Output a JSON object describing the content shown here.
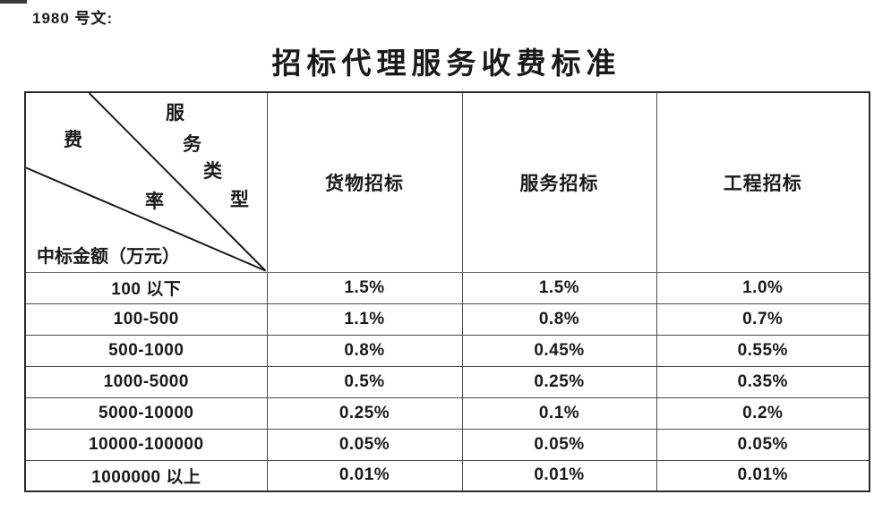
{
  "doc_label": "1980 号文:",
  "title": "招标代理服务收费标准",
  "table": {
    "corner": {
      "fee": "费",
      "rate": "率",
      "service_chars": [
        "服",
        "务",
        "类",
        "型"
      ],
      "amount_label": "中标金额（万元）"
    },
    "columns": [
      "货物招标",
      "服务招标",
      "工程招标"
    ],
    "rows": [
      {
        "label": "100 以下",
        "values": [
          "1.5%",
          "1.5%",
          "1.0%"
        ]
      },
      {
        "label": "100-500",
        "values": [
          "1.1%",
          "0.8%",
          "0.7%"
        ]
      },
      {
        "label": "500-1000",
        "values": [
          "0.8%",
          "0.45%",
          "0.55%"
        ]
      },
      {
        "label": "1000-5000",
        "values": [
          "0.5%",
          "0.25%",
          "0.35%"
        ]
      },
      {
        "label": "5000-10000",
        "values": [
          "0.25%",
          "0.1%",
          "0.2%"
        ]
      },
      {
        "label": "10000-100000",
        "values": [
          "0.05%",
          "0.05%",
          "0.05%"
        ]
      },
      {
        "label": "1000000 以上",
        "values": [
          "0.01%",
          "0.01%",
          "0.01%"
        ]
      }
    ]
  },
  "colors": {
    "text": "#1a1a1a",
    "border_outer": "#2b2b2b",
    "border_inner": "#4a4a4a",
    "background": "#ffffff"
  }
}
